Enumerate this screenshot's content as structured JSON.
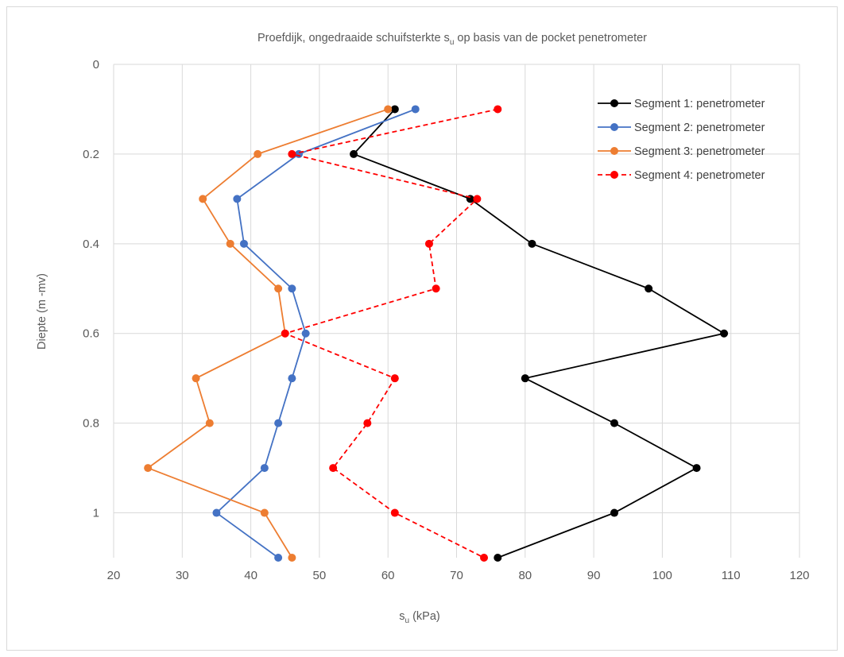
{
  "chart_data": {
    "type": "scatter",
    "title": {
      "prefix": "Proefdijk, ongedraaide schuifsterkte s",
      "subscript": "u",
      "suffix": " op basis van de pocket penetrometer"
    },
    "xlabel": {
      "prefix": "s",
      "subscript": "u",
      "suffix": " (kPa)"
    },
    "ylabel": "Diepte (m -mv)",
    "xlim": [
      20,
      120
    ],
    "ylim": [
      0,
      1.1
    ],
    "y_inverted": true,
    "x_ticks": [
      20,
      30,
      40,
      50,
      60,
      70,
      80,
      90,
      100,
      110,
      120
    ],
    "y_ticks": [
      0,
      0.2,
      0.4,
      0.6,
      0.8,
      1
    ],
    "y_tick_labels": [
      "0",
      "0.2",
      "0.4",
      "0.6",
      "0.8",
      "1"
    ],
    "grid": true,
    "legend_position": "top-right",
    "series": [
      {
        "name": "Segment 1: penetrometer",
        "color": "#000000",
        "dashed": false,
        "points": [
          [
            61,
            0.1
          ],
          [
            55,
            0.2
          ],
          [
            72,
            0.3
          ],
          [
            81,
            0.4
          ],
          [
            98,
            0.5
          ],
          [
            109,
            0.6
          ],
          [
            80,
            0.7
          ],
          [
            93,
            0.8
          ],
          [
            105,
            0.9
          ],
          [
            93,
            1.0
          ],
          [
            76,
            1.1
          ]
        ]
      },
      {
        "name": "Segment 2: penetrometer",
        "color": "#4472c4",
        "dashed": false,
        "points": [
          [
            64,
            0.1
          ],
          [
            47,
            0.2
          ],
          [
            38,
            0.3
          ],
          [
            39,
            0.4
          ],
          [
            46,
            0.5
          ],
          [
            48,
            0.6
          ],
          [
            46,
            0.7
          ],
          [
            44,
            0.8
          ],
          [
            42,
            0.9
          ],
          [
            35,
            1.0
          ],
          [
            44,
            1.1
          ]
        ]
      },
      {
        "name": "Segment 3: penetrometer",
        "color": "#ed7d31",
        "dashed": false,
        "points": [
          [
            60,
            0.1
          ],
          [
            41,
            0.2
          ],
          [
            33,
            0.3
          ],
          [
            37,
            0.4
          ],
          [
            44,
            0.5
          ],
          [
            45,
            0.6
          ],
          [
            32,
            0.7
          ],
          [
            34,
            0.8
          ],
          [
            25,
            0.9
          ],
          [
            42,
            1.0
          ],
          [
            46,
            1.1
          ]
        ]
      },
      {
        "name": "Segment 4: penetrometer",
        "color": "#ff0000",
        "dashed": true,
        "points": [
          [
            76,
            0.1
          ],
          [
            46,
            0.2
          ],
          [
            73,
            0.3
          ],
          [
            66,
            0.4
          ],
          [
            67,
            0.5
          ],
          [
            45,
            0.6
          ],
          [
            61,
            0.7
          ],
          [
            57,
            0.8
          ],
          [
            52,
            0.9
          ],
          [
            61,
            1.0
          ],
          [
            74,
            1.1
          ]
        ]
      }
    ]
  }
}
